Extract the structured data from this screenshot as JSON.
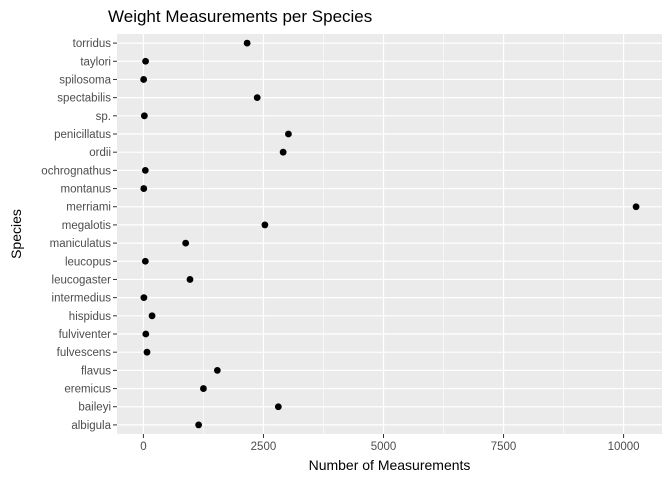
{
  "chart_data": {
    "type": "scatter",
    "title": "Weight Measurements per Species",
    "xlabel": "Number of Measurements",
    "ylabel": "Species",
    "xlim": [
      -550,
      10800
    ],
    "xticks": [
      0,
      2500,
      5000,
      7500,
      10000
    ],
    "xtick_labels": [
      "0",
      "2500",
      "5000",
      "7500",
      "10000"
    ],
    "categories": [
      "albigula",
      "baileyi",
      "eremicus",
      "flavus",
      "fulvescens",
      "fulviventer",
      "hispidus",
      "intermedius",
      "leucogaster",
      "leucopus",
      "maniculatus",
      "megalotis",
      "merriami",
      "montanus",
      "ochrognathus",
      "ordii",
      "penicillatus",
      "sp.",
      "spectabilis",
      "spilosoma",
      "taylori",
      "torridus"
    ],
    "values": [
      1150,
      2810,
      1250,
      1540,
      75,
      50,
      180,
      10,
      970,
      40,
      880,
      2530,
      10260,
      8,
      40,
      2910,
      3020,
      20,
      2370,
      5,
      45,
      2160
    ],
    "grid": true,
    "colors": {
      "panel": "#ebebeb",
      "grid_major": "#ffffff",
      "point": "#000000"
    }
  }
}
